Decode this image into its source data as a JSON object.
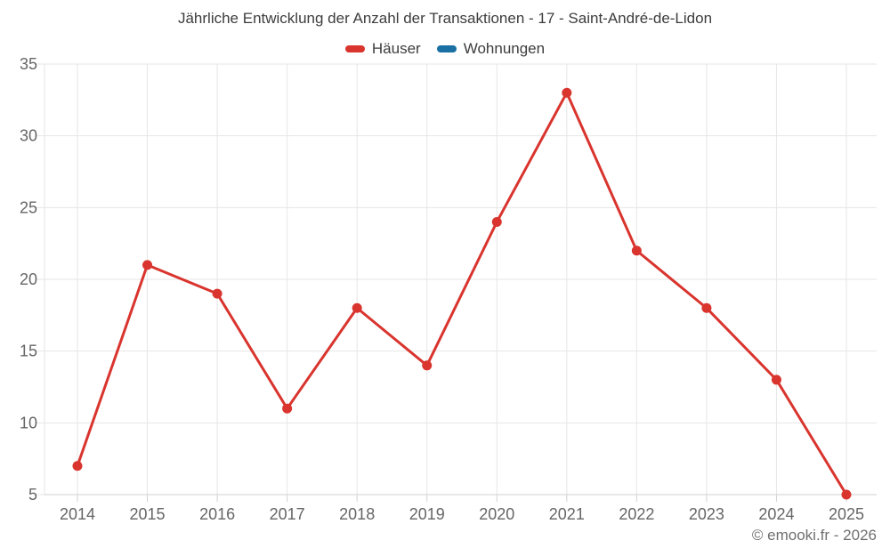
{
  "title": "Jährliche Entwicklung der Anzahl der Transaktionen - 17 - Saint-André-de-Lidon",
  "legend": [
    {
      "label": "Häuser",
      "color": "#d9342e"
    },
    {
      "label": "Wohnungen",
      "color": "#1a6fa3"
    }
  ],
  "footer": {
    "copyright": "© emooki.fr - 2026"
  },
  "chart_data": {
    "type": "line",
    "title": "Jährliche Entwicklung der Anzahl der Transaktionen - 17 - Saint-André-de-Lidon",
    "x": [
      "2014",
      "2015",
      "2016",
      "2017",
      "2018",
      "2019",
      "2020",
      "2021",
      "2022",
      "2023",
      "2024",
      "2025"
    ],
    "series": [
      {
        "name": "Häuser",
        "color": "#d9342e",
        "values": [
          7,
          21,
          19,
          11,
          18,
          14,
          24,
          33,
          22,
          18,
          13,
          5
        ]
      },
      {
        "name": "Wohnungen",
        "color": "#1a6fa3",
        "values": []
      }
    ],
    "xlabel": "",
    "ylabel": "",
    "ylim": [
      5,
      35
    ],
    "yticks": [
      5,
      10,
      15,
      20,
      25,
      30,
      35
    ],
    "grid": true,
    "legend_position": "top",
    "marker": "circle",
    "axis_text_color": "#666666",
    "grid_color": "#e6e6e6",
    "axis_line_color": "#d2d2d2"
  }
}
